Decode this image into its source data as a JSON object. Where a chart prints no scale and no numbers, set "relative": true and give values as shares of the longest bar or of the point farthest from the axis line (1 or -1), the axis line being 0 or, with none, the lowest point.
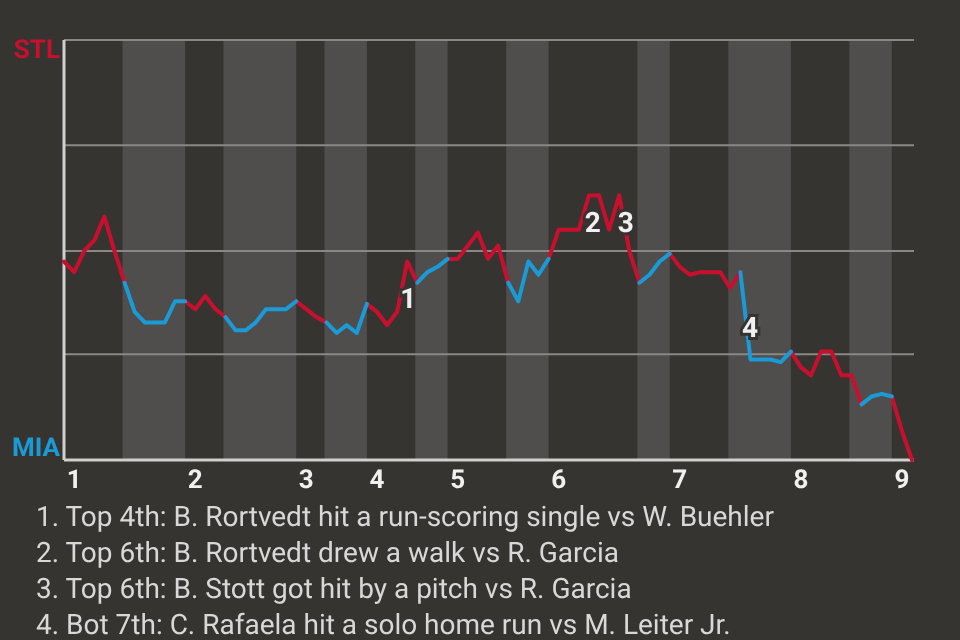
{
  "chart_data": {
    "type": "line",
    "relative": true,
    "categories": [
      null,
      "1",
      null,
      null,
      null,
      null,
      null,
      null,
      null,
      null,
      null,
      null,
      null,
      "2",
      null,
      null,
      null,
      null,
      null,
      null,
      null,
      null,
      null,
      null,
      "3",
      null,
      null,
      null,
      null,
      null,
      null,
      "4",
      null,
      null,
      null,
      null,
      null,
      null,
      null,
      "5",
      null,
      null,
      null,
      null,
      null,
      null,
      null,
      null,
      null,
      "6",
      null,
      null,
      null,
      null,
      null,
      null,
      null,
      null,
      null,
      null,
      null,
      "7",
      null,
      null,
      null,
      null,
      null,
      null,
      null,
      null,
      null,
      null,
      null,
      "8",
      null,
      null,
      null,
      null,
      null,
      null,
      null,
      null,
      null,
      "9",
      null
    ],
    "marker": "none",
    "line_style": "solid",
    "ref_lines": [
      {
        "axis": "y",
        "value": 0.4,
        "color": "#8a8886"
      },
      {
        "axis": "y",
        "value": 0.79,
        "color": "#8a8886"
      },
      {
        "axis": "y",
        "value": 1.19,
        "color": "#8a8886"
      }
    ],
    "series": [
      {
        "color": "#c8102e",
        "values": [
          0.75,
          0.71,
          0.79,
          0.83,
          0.92,
          0.79,
          0.67,
          null,
          null,
          null,
          null,
          null,
          0.6,
          0.57,
          0.62,
          0.57,
          0.54,
          null,
          null,
          null,
          null,
          null,
          null,
          0.6,
          0.57,
          0.54,
          0.52,
          null,
          null,
          null,
          0.59,
          0.56,
          0.51,
          0.56,
          0.75,
          0.67,
          null,
          null,
          0.76,
          0.76,
          0.81,
          0.86,
          0.76,
          0.81,
          0.67,
          null,
          null,
          null,
          0.76,
          0.87,
          0.87,
          0.87,
          1,
          1,
          0.87,
          1,
          0.79,
          0.67,
          null,
          null,
          0.78,
          0.73,
          0.7,
          0.71,
          0.71,
          0.71,
          0.65,
          0.71,
          null,
          null,
          null,
          null,
          0.41,
          0.35,
          0.32,
          0.41,
          0.41,
          0.32,
          0.32,
          0.21,
          null,
          null,
          0.24,
          0.11,
          0
        ],
        "name": null
      },
      {
        "color": "#1a9ad6",
        "values": [
          null,
          null,
          null,
          null,
          null,
          null,
          0.67,
          0.56,
          0.52,
          0.52,
          0.52,
          0.6,
          0.6,
          null,
          null,
          null,
          0.54,
          0.49,
          0.49,
          0.52,
          0.57,
          0.57,
          0.57,
          0.6,
          null,
          null,
          0.52,
          0.48,
          0.51,
          0.48,
          0.59,
          null,
          null,
          null,
          null,
          0.67,
          0.71,
          0.73,
          0.76,
          null,
          null,
          null,
          null,
          null,
          0.67,
          0.6,
          0.75,
          0.7,
          0.76,
          null,
          null,
          null,
          null,
          null,
          null,
          null,
          null,
          0.67,
          0.7,
          0.75,
          0.78,
          null,
          null,
          null,
          null,
          null,
          null,
          0.71,
          0.38,
          0.38,
          0.38,
          0.37,
          0.41,
          null,
          null,
          null,
          null,
          null,
          null,
          0.21,
          0.24,
          0.25,
          0.24,
          null,
          null
        ]
      }
    ],
    "annotations": [
      "STL",
      "MIA",
      "1",
      "2",
      "3",
      "4",
      "1. Top 4th: B. Rortvedt hit a run-scoring single vs W. Buehler",
      "2. Top 6th: B. Rortvedt drew a walk vs R. Garcia",
      "3. Top 6th: B. Stott got hit by a pitch vs R. Garcia",
      "4. Bot 7th: C. Rafaela hit a solo home run vs M. Leiter Jr."
    ]
  }
}
